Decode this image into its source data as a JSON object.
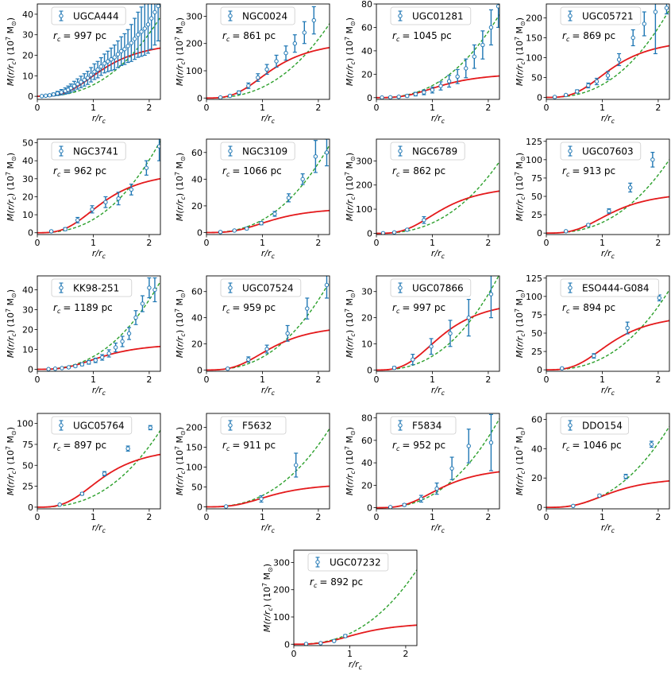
{
  "figure": {
    "xlabel": "r/r",
    "xlabel_sub": "c",
    "ylabel_main": "M(r/r",
    "ylabel_sub": "c",
    "ylabel_unit": ") (10",
    "ylabel_exp": "7",
    "ylabel_msun": " M",
    "ylabel_sun": "⊙",
    "ylabel_close": ")",
    "rc_prefix": "r",
    "rc_sub": "c",
    "colors": {
      "errorbar": "#1f77b4",
      "model_solid": "#e41a1c",
      "model_dashed": "#2ca02c"
    }
  },
  "chart_data": [
    {
      "type": "scatter",
      "title": "UGCA444",
      "rc_text": "= 997 pc",
      "xlim": [
        0,
        2.2
      ],
      "ylim": [
        -1.5,
        45
      ],
      "xticks": [
        0,
        1,
        2
      ],
      "yticks": [
        0,
        10,
        20,
        30,
        40
      ],
      "solid_max": 23.5,
      "dashed_k": 5.6,
      "x": [
        0.08,
        0.15,
        0.22,
        0.29,
        0.36,
        0.43,
        0.5,
        0.55,
        0.6,
        0.66,
        0.72,
        0.78,
        0.84,
        0.9,
        0.96,
        1.02,
        1.08,
        1.14,
        1.2,
        1.26,
        1.32,
        1.38,
        1.44,
        1.5,
        1.56,
        1.62,
        1.68,
        1.74,
        1.8,
        1.86,
        1.92,
        1.98,
        2.04,
        2.1,
        2.16
      ],
      "y": [
        0.1,
        0.3,
        0.5,
        0.9,
        1.4,
        2,
        2.6,
        3.2,
        4,
        5,
        6,
        7,
        8,
        9,
        10.5,
        12,
        13,
        14.5,
        16,
        17,
        18,
        19,
        20.5,
        22,
        23,
        24.5,
        26,
        28,
        30,
        31.5,
        33,
        35,
        38,
        41,
        44
      ],
      "err": [
        0.2,
        0.3,
        0.5,
        0.7,
        1,
        1.3,
        1.5,
        1.8,
        2,
        2.3,
        2.5,
        2.8,
        3,
        3.2,
        3.5,
        3.8,
        4,
        4.3,
        4.6,
        5,
        5.5,
        6,
        6.5,
        7,
        7.5,
        8,
        9,
        10,
        11,
        12,
        13,
        14,
        15,
        16,
        17
      ]
    },
    {
      "type": "scatter",
      "title": "NGC0024",
      "rc_text": "= 861 pc",
      "xlim": [
        0,
        2.2
      ],
      "ylim": [
        -5,
        345
      ],
      "xticks": [
        0,
        1,
        2
      ],
      "yticks": [
        0,
        100,
        200,
        300
      ],
      "solid_max": 185,
      "dashed_k": 39.5,
      "x": [
        0.25,
        0.42,
        0.58,
        0.75,
        0.92,
        1.08,
        1.25,
        1.42,
        1.58,
        1.75,
        1.92
      ],
      "y": [
        2,
        8,
        20,
        45,
        75,
        105,
        135,
        165,
        200,
        240,
        285
      ],
      "err": [
        1.5,
        3,
        6,
        10,
        14,
        18,
        22,
        26,
        32,
        40,
        50
      ]
    },
    {
      "type": "scatter",
      "title": "UGC01281",
      "rc_text": "= 1045 pc",
      "xlim": [
        0,
        2.2
      ],
      "ylim": [
        -1.5,
        80
      ],
      "xticks": [
        0,
        1,
        2
      ],
      "yticks": [
        0,
        20,
        40,
        60,
        80
      ],
      "solid_max": 18.5,
      "dashed_k": 10.3,
      "x": [
        0.1,
        0.25,
        0.4,
        0.55,
        0.7,
        0.85,
        1.0,
        1.15,
        1.3,
        1.45,
        1.6,
        1.75,
        1.9,
        2.05,
        2.18
      ],
      "y": [
        0.1,
        0.3,
        0.7,
        1.5,
        3,
        4.5,
        6.5,
        10,
        14,
        18,
        25,
        35,
        45,
        60,
        78
      ],
      "err": [
        0.2,
        0.4,
        0.7,
        1,
        1.5,
        2,
        2.5,
        3.5,
        5,
        6,
        8,
        10,
        12,
        15,
        18
      ]
    },
    {
      "type": "scatter",
      "title": "UGC05721",
      "rc_text": "= 869 pc",
      "xlim": [
        0,
        2.2
      ],
      "ylim": [
        -5,
        235
      ],
      "xticks": [
        0,
        1,
        2
      ],
      "yticks": [
        0,
        50,
        100,
        150,
        200
      ],
      "solid_max": 130,
      "dashed_k": 32,
      "x": [
        0.15,
        0.35,
        0.55,
        0.75,
        0.9,
        1.1,
        1.3,
        1.55,
        1.75,
        1.95,
        2.15
      ],
      "y": [
        1,
        6,
        15,
        30,
        40,
        55,
        95,
        150,
        185,
        215,
        225
      ],
      "err": [
        1,
        2,
        4,
        6,
        8,
        10,
        15,
        20,
        30,
        105,
        15
      ]
    },
    {
      "type": "scatter",
      "title": "NGC3741",
      "rc_text": "= 962 pc",
      "xlim": [
        0,
        2.2
      ],
      "ylim": [
        -1,
        52
      ],
      "xticks": [
        0,
        1,
        2
      ],
      "yticks": [
        0,
        10,
        20,
        30,
        40,
        50
      ],
      "solid_max": 30,
      "dashed_k": 7.4,
      "x": [
        0.25,
        0.5,
        0.72,
        0.98,
        1.22,
        1.45,
        1.68,
        1.95,
        2.18
      ],
      "y": [
        0.8,
        2,
        7,
        13,
        17,
        19,
        24,
        36,
        48
      ],
      "err": [
        0.5,
        0.8,
        1.5,
        2,
        3,
        3.5,
        3,
        4,
        8
      ]
    },
    {
      "type": "scatter",
      "title": "NGC3109",
      "rc_text": "= 1066 pc",
      "xlim": [
        0,
        2.2
      ],
      "ylim": [
        -1.5,
        70
      ],
      "xticks": [
        0,
        1,
        2
      ],
      "yticks": [
        0,
        20,
        40,
        60
      ],
      "solid_max": 16.5,
      "dashed_k": 9.5,
      "x": [
        0.25,
        0.5,
        0.72,
        0.98,
        1.22,
        1.47,
        1.72,
        1.95,
        2.15
      ],
      "y": [
        0.4,
        1.5,
        3,
        7,
        14,
        26,
        40,
        57,
        60
      ],
      "err": [
        0.2,
        0.4,
        0.8,
        1.2,
        1.8,
        3,
        4,
        12,
        10
      ]
    },
    {
      "type": "scatter",
      "title": "NGC6789",
      "rc_text": "= 862 pc",
      "xlim": [
        0,
        2.2
      ],
      "ylim": [
        -5,
        390
      ],
      "xticks": [
        0,
        1,
        2
      ],
      "yticks": [
        0,
        100,
        200,
        300
      ],
      "solid_max": 175,
      "dashed_k": 43,
      "x": [
        0.12,
        0.32,
        0.55,
        0.85
      ],
      "y": [
        0.5,
        4,
        15,
        55
      ],
      "err": [
        0.3,
        1,
        3,
        14
      ]
    },
    {
      "type": "scatter",
      "title": "UGC07603",
      "rc_text": "= 913 pc",
      "xlim": [
        0,
        2.2
      ],
      "ylim": [
        -2,
        128
      ],
      "xticks": [
        0,
        1,
        2
      ],
      "yticks": [
        0,
        25,
        50,
        75,
        100,
        125
      ],
      "solid_max": 49.5,
      "dashed_k": 14.5,
      "x": [
        0.35,
        0.75,
        1.12,
        1.5,
        1.9
      ],
      "y": [
        2.5,
        11,
        30,
        62,
        100
      ],
      "err": [
        0.5,
        1.5,
        3,
        6,
        10
      ]
    },
    {
      "type": "scatter",
      "title": "KK98-251",
      "rc_text": "= 1189 pc",
      "xlim": [
        0,
        2.2
      ],
      "ylim": [
        -1,
        47
      ],
      "xticks": [
        0,
        1,
        2
      ],
      "yticks": [
        0,
        10,
        20,
        30,
        40
      ],
      "solid_max": 11.5,
      "dashed_k": 6.4,
      "x": [
        0.2,
        0.32,
        0.44,
        0.56,
        0.68,
        0.8,
        0.92,
        1.04,
        1.16,
        1.28,
        1.4,
        1.52,
        1.64,
        1.76,
        1.88,
        2.0,
        2.1
      ],
      "y": [
        0.1,
        0.3,
        0.6,
        1,
        1.6,
        2.5,
        3.5,
        4.5,
        6,
        8,
        11,
        14,
        18,
        26,
        33,
        41,
        40
      ],
      "err": [
        0.1,
        0.2,
        0.3,
        0.4,
        0.5,
        0.7,
        0.9,
        1.1,
        1.4,
        1.8,
        2.2,
        2.6,
        3,
        3.5,
        4,
        5,
        6
      ]
    },
    {
      "type": "scatter",
      "title": "UGC07524",
      "rc_text": "= 959 pc",
      "xlim": [
        0,
        2.2
      ],
      "ylim": [
        -1,
        72
      ],
      "xticks": [
        0,
        1,
        2
      ],
      "yticks": [
        0,
        20,
        40,
        60
      ],
      "solid_max": 30.5,
      "dashed_k": 9.8,
      "x": [
        0.38,
        0.75,
        1.08,
        1.45,
        1.8,
        2.15
      ],
      "y": [
        1,
        8,
        16,
        28,
        47,
        65
      ],
      "err": [
        0.5,
        2,
        3,
        6,
        8,
        10
      ]
    },
    {
      "type": "scatter",
      "title": "UGC07866",
      "rc_text": "= 997 pc",
      "xlim": [
        0,
        2.2
      ],
      "ylim": [
        -0.5,
        36
      ],
      "xticks": [
        0,
        1,
        2
      ],
      "yticks": [
        0,
        10,
        20,
        30
      ],
      "solid_max": 23.5,
      "dashed_k": 5.3,
      "x": [
        0.32,
        0.65,
        0.98,
        1.32,
        1.65,
        2.05
      ],
      "y": [
        0.8,
        4,
        9,
        14,
        20,
        29
      ],
      "err": [
        0.5,
        2,
        3,
        5,
        7,
        9
      ]
    },
    {
      "type": "scatter",
      "title": "ESO444-G084",
      "rc_text": "= 894 pc",
      "xlim": [
        0,
        2.2
      ],
      "ylim": [
        -2,
        128
      ],
      "xticks": [
        0,
        1,
        2
      ],
      "yticks": [
        0,
        25,
        50,
        75,
        100,
        125
      ],
      "solid_max": 67,
      "dashed_k": 15.8,
      "x": [
        0.28,
        0.85,
        1.45,
        2.02
      ],
      "y": [
        2,
        19,
        57,
        98
      ],
      "err": [
        0.5,
        3,
        8,
        4
      ]
    },
    {
      "type": "scatter",
      "title": "UGC05764",
      "rc_text": "= 897 pc",
      "xlim": [
        0,
        2.2
      ],
      "ylim": [
        -2,
        112
      ],
      "xticks": [
        0,
        1,
        2
      ],
      "yticks": [
        0,
        25,
        50,
        75,
        100
      ],
      "solid_max": 63,
      "dashed_k": 13.3,
      "x": [
        0.4,
        0.8,
        1.2,
        1.62,
        2.02
      ],
      "y": [
        3,
        16,
        40,
        70,
        95
      ],
      "err": [
        0.5,
        1.5,
        2.5,
        3,
        2.5
      ]
    },
    {
      "type": "scatter",
      "title": "F5632",
      "rc_text": "= 911 pc",
      "xlim": [
        0,
        2.2
      ],
      "ylim": [
        -5,
        235
      ],
      "xticks": [
        0,
        1,
        2
      ],
      "yticks": [
        0,
        50,
        100,
        150,
        200
      ],
      "solid_max": 52,
      "dashed_k": 28.5,
      "x": [
        0.35,
        0.98,
        1.6
      ],
      "y": [
        1,
        20,
        105
      ],
      "err": [
        0.5,
        8,
        30
      ]
    },
    {
      "type": "scatter",
      "title": "F5834",
      "rc_text": "= 952 pc",
      "xlim": [
        0,
        2.2
      ],
      "ylim": [
        -1,
        84
      ],
      "xticks": [
        0,
        1,
        2
      ],
      "yticks": [
        0,
        20,
        40,
        60,
        80
      ],
      "solid_max": 32,
      "dashed_k": 11.5,
      "x": [
        0.25,
        0.5,
        0.8,
        1.08,
        1.35,
        1.65,
        2.05
      ],
      "y": [
        0.5,
        2.5,
        8,
        17,
        35,
        55,
        58
      ],
      "err": [
        0.3,
        1,
        3,
        5,
        10,
        15,
        25
      ]
    },
    {
      "type": "scatter",
      "title": "DDO154",
      "rc_text": "= 1046 pc",
      "xlim": [
        0,
        2.2
      ],
      "ylim": [
        -1,
        64
      ],
      "xticks": [
        0,
        1,
        2
      ],
      "yticks": [
        0,
        20,
        40,
        60
      ],
      "solid_max": 18,
      "dashed_k": 8,
      "x": [
        0.48,
        0.95,
        1.42,
        1.88
      ],
      "y": [
        1,
        8,
        21,
        43
      ],
      "err": [
        0.3,
        0.8,
        1.5,
        2
      ]
    },
    {
      "type": "scatter",
      "title": "UGC07232",
      "rc_text": "= 892 pc",
      "xlim": [
        0,
        2.2
      ],
      "ylim": [
        -5,
        345
      ],
      "xticks": [
        0,
        1,
        2
      ],
      "yticks": [
        0,
        100,
        200,
        300
      ],
      "solid_max": 70,
      "dashed_k": 39.5,
      "x": [
        0.22,
        0.48,
        0.72,
        0.92
      ],
      "y": [
        1,
        4,
        12,
        30
      ],
      "err": [
        0.5,
        1,
        2,
        5
      ]
    }
  ]
}
